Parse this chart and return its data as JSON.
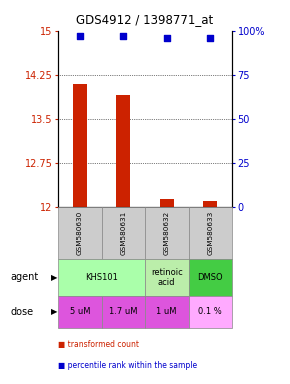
{
  "title": "GDS4912 / 1398771_at",
  "samples": [
    "GSM580630",
    "GSM580631",
    "GSM580632",
    "GSM580633"
  ],
  "bar_values": [
    14.1,
    13.9,
    12.15,
    12.1
  ],
  "dot_values": [
    97,
    97,
    96,
    96
  ],
  "ylim": [
    12,
    15
  ],
  "yticks": [
    12,
    12.75,
    13.5,
    14.25,
    15
  ],
  "ytick_labels": [
    "12",
    "12.75",
    "13.5",
    "14.25",
    "15"
  ],
  "y2lim": [
    0,
    100
  ],
  "y2ticks": [
    0,
    25,
    50,
    75,
    100
  ],
  "y2tick_labels": [
    "0",
    "25",
    "50",
    "75",
    "100%"
  ],
  "bar_color": "#cc2200",
  "dot_color": "#0000cc",
  "bar_bottom": 12,
  "agent_configs": [
    {
      "span": [
        0,
        1
      ],
      "text": "KHS101",
      "color": "#aaffaa"
    },
    {
      "span": [
        2,
        2
      ],
      "text": "retinoic\nacid",
      "color": "#bbeeaa"
    },
    {
      "span": [
        3,
        3
      ],
      "text": "DMSO",
      "color": "#44cc44"
    }
  ],
  "dose_labels": [
    "5 uM",
    "1.7 uM",
    "1 uM",
    "0.1 %"
  ],
  "dose_colors": [
    "#dd55dd",
    "#dd55dd",
    "#dd55dd",
    "#ffaaff"
  ],
  "sample_bg": "#cccccc",
  "legend_red": "transformed count",
  "legend_blue": "percentile rank within the sample",
  "ylabel_color_left": "#cc2200",
  "ylabel_color_right": "#0000cc",
  "grid_lines": [
    12.75,
    13.5,
    14.25
  ],
  "hgrid_color": "black"
}
